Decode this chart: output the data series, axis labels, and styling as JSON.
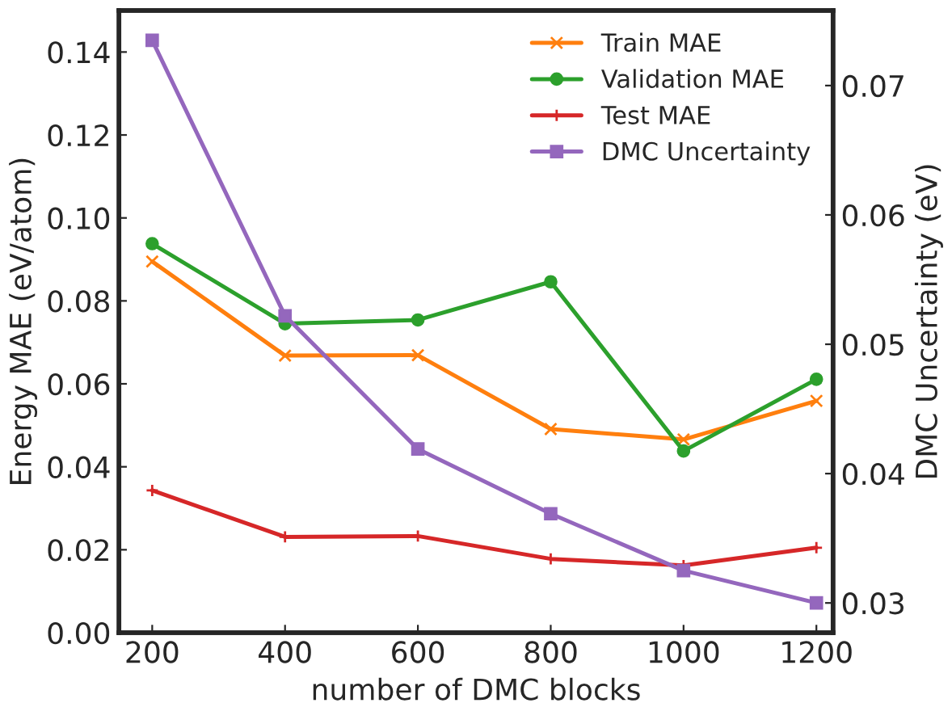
{
  "chart_data": {
    "type": "line",
    "xlabel": "number of DMC blocks",
    "ylabel": "Energy MAE (eV/atom)",
    "y2label": "DMC Uncertainty (eV)",
    "x": [
      200,
      400,
      600,
      800,
      1000,
      1200
    ],
    "series": [
      {
        "name": "Train MAE",
        "color": "#ff7f0e",
        "marker": "cross",
        "values": [
          0.0895,
          0.0668,
          0.0669,
          0.0491,
          0.0466,
          0.0559
        ]
      },
      {
        "name": "Validation MAE",
        "color": "#2ca02c",
        "marker": "circle",
        "values": [
          0.0938,
          0.0745,
          0.0754,
          0.0846,
          0.0438,
          0.0611
        ]
      },
      {
        "name": "Test MAE",
        "color": "#d62728",
        "marker": "plus",
        "values": [
          0.0343,
          0.0231,
          0.0233,
          0.0178,
          0.0162,
          0.0205
        ]
      },
      {
        "name": "DMC Uncertainty",
        "color": "#9467bd",
        "marker": "square",
        "axis": "y2",
        "values": [
          0.0735,
          0.0522,
          0.0419,
          0.0369,
          0.0325,
          0.03
        ]
      }
    ],
    "xlim": [
      150,
      1225
    ],
    "xticks": [
      200,
      400,
      600,
      800,
      1000,
      1200
    ],
    "ylim": [
      0,
      0.15
    ],
    "yticks": [
      {
        "value": 0,
        "label": "0.00"
      },
      0.02,
      0.04,
      0.06,
      0.08,
      {
        "value": 0.1,
        "label": "0.10"
      },
      0.12,
      0.14
    ],
    "y2lim": [
      0.0277,
      0.0758
    ],
    "y2ticks": [
      0.03,
      0.04,
      0.05,
      0.06,
      0.07
    ],
    "legend": "top right",
    "grid": false
  }
}
